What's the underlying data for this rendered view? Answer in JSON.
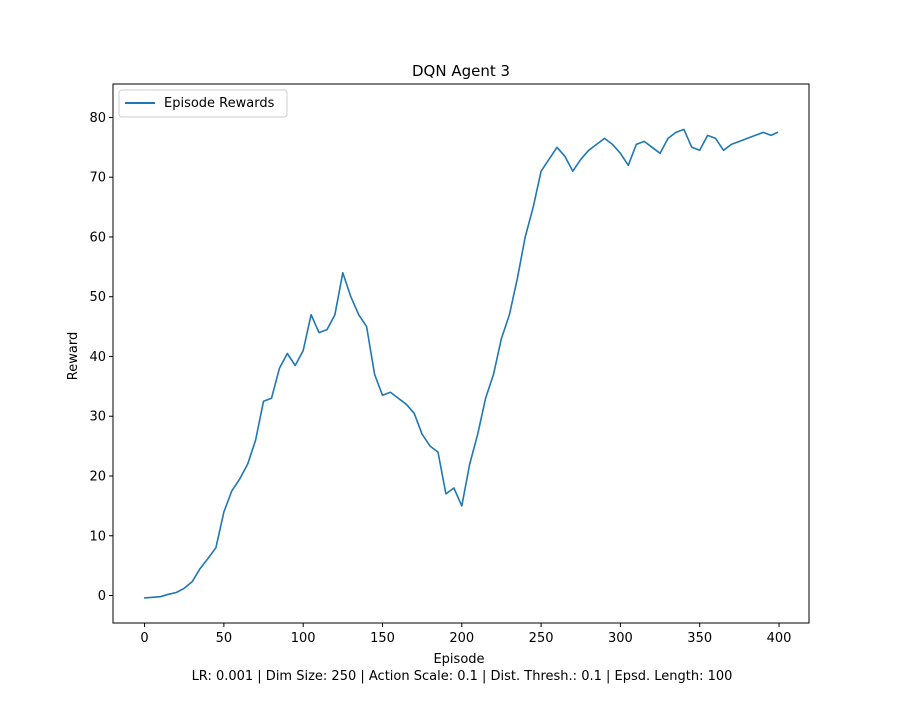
{
  "chart_data": {
    "type": "line",
    "title": "DQN Agent 3",
    "xlabel": "Episode",
    "ylabel": "Reward",
    "caption": "LR: 0.001 | Dim Size: 250 | Action Scale: 0.1 | Dist. Thresh.: 0.1 | Epsd. Length: 100",
    "xlim": [
      -19.9,
      418.9
    ],
    "ylim": [
      -4.6,
      85.6
    ],
    "xticks": [
      0,
      50,
      100,
      150,
      200,
      250,
      300,
      350,
      400
    ],
    "yticks": [
      0,
      10,
      20,
      30,
      40,
      50,
      60,
      70,
      80
    ],
    "grid": false,
    "legend_position": "top-left",
    "series": [
      {
        "name": "Episode Rewards",
        "color": "#1f77b4",
        "x": [
          0,
          5,
          10,
          15,
          20,
          25,
          30,
          35,
          40,
          45,
          50,
          55,
          60,
          65,
          70,
          75,
          80,
          85,
          90,
          95,
          100,
          105,
          110,
          115,
          120,
          125,
          130,
          135,
          140,
          145,
          150,
          155,
          160,
          165,
          170,
          175,
          180,
          185,
          190,
          195,
          200,
          205,
          210,
          215,
          220,
          225,
          230,
          235,
          240,
          245,
          250,
          255,
          260,
          265,
          270,
          275,
          280,
          285,
          290,
          295,
          300,
          305,
          310,
          315,
          320,
          325,
          330,
          335,
          340,
          345,
          350,
          355,
          360,
          365,
          370,
          375,
          380,
          385,
          390,
          395,
          399
        ],
        "y": [
          -0.4,
          -0.3,
          -0.2,
          0.2,
          0.5,
          1.2,
          2.3,
          4.5,
          6.2,
          8.0,
          14.0,
          17.5,
          19.5,
          22.0,
          26.0,
          32.5,
          33.0,
          38.0,
          40.5,
          38.5,
          41.0,
          47.0,
          44.0,
          44.5,
          47.0,
          54.0,
          50.0,
          47.0,
          45.0,
          37.0,
          33.5,
          34.0,
          33.0,
          32.0,
          30.5,
          27.0,
          25.0,
          24.0,
          17.0,
          18.0,
          15.0,
          22.0,
          27.0,
          33.0,
          37.0,
          43.0,
          47.0,
          53.0,
          60.0,
          65.0,
          71.0,
          73.0,
          75.0,
          73.5,
          71.0,
          73.0,
          74.5,
          75.5,
          76.5,
          75.5,
          74.0,
          72.0,
          75.5,
          76.0,
          75.0,
          74.0,
          76.5,
          77.5,
          78.0,
          75.0,
          74.5,
          77.0,
          76.5,
          74.5,
          75.5,
          76.0,
          76.5,
          77.0,
          77.5,
          77.0,
          77.5
        ]
      }
    ]
  }
}
